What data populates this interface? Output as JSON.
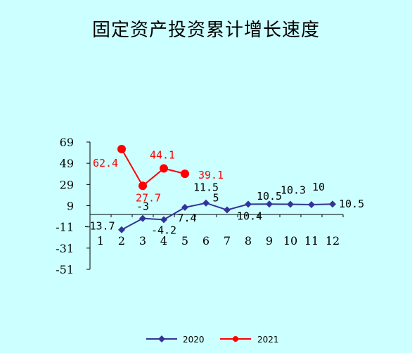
{
  "title": "固定资产投资累计增长速度",
  "chart_data": {
    "type": "line",
    "title": "固定资产投资累计增长速度",
    "x": [
      1,
      2,
      3,
      4,
      5,
      6,
      7,
      8,
      9,
      10,
      11,
      12
    ],
    "x_tick_labels": [
      "1",
      "2",
      "3",
      "4",
      "5",
      "6",
      "7",
      "8",
      "9",
      "10",
      "11",
      "12"
    ],
    "y_ticks": [
      69,
      49,
      29,
      9,
      -11,
      -31,
      -51
    ],
    "ylim": [
      -51,
      69
    ],
    "grid": false,
    "legend_position": "bottom",
    "series": [
      {
        "name": "2020",
        "color": "#333399",
        "marker": "diamond",
        "x": [
          2,
          3,
          4,
          5,
          6,
          7,
          8,
          9,
          10,
          11,
          12
        ],
        "values": [
          -13.7,
          -3,
          -4.2,
          7.4,
          11.5,
          5,
          10.4,
          10.5,
          10.3,
          10,
          10.5
        ],
        "labels": [
          "-13.7",
          "-3",
          "-4.2",
          "7.4",
          "11.5",
          "5",
          "10.4",
          "10.5",
          "10.3",
          "10",
          "10.5"
        ]
      },
      {
        "name": "2021",
        "color": "#ff0000",
        "marker": "circle",
        "x": [
          2,
          3,
          4,
          5
        ],
        "values": [
          62.4,
          27.7,
          44.1,
          39.1
        ],
        "labels": [
          "62.4",
          "27.7",
          "44.1",
          "39.1"
        ]
      }
    ]
  }
}
